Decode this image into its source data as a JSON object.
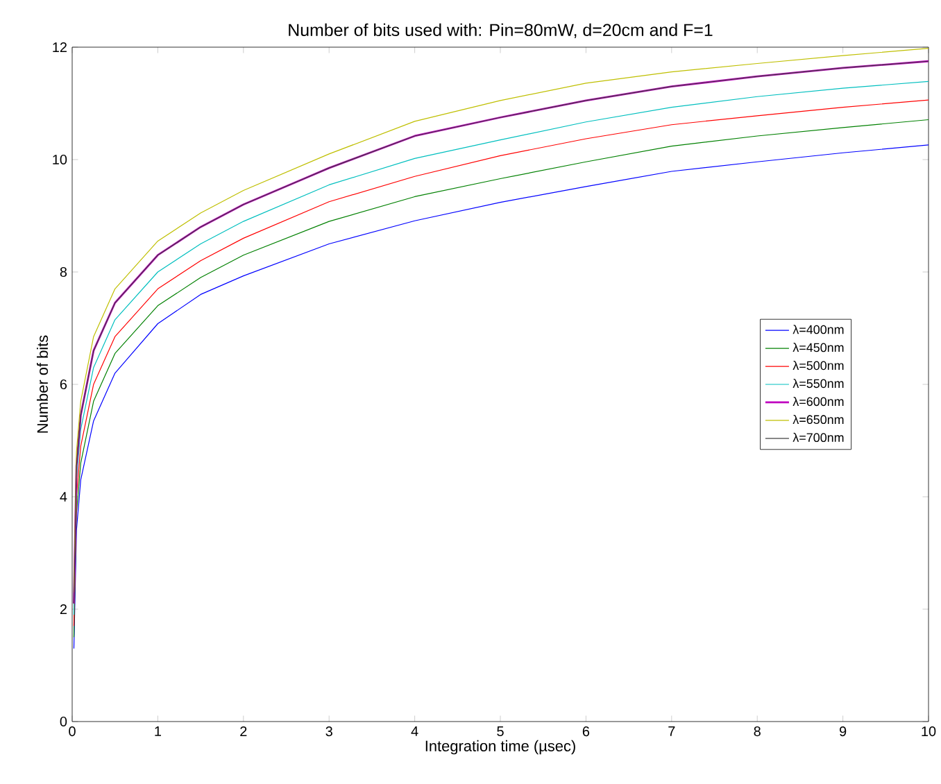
{
  "chart_data": {
    "type": "line",
    "title": "Number of bits used with: Pin=80mW, d=20cm and F=1",
    "xlabel": "Integration time (µsec)",
    "ylabel": "Number of bits",
    "x": [
      0.02,
      0.05,
      0.1,
      0.25,
      0.5,
      1,
      1.5,
      2,
      3,
      4,
      5,
      6,
      7,
      8,
      9,
      10
    ],
    "xlim": [
      0,
      10
    ],
    "ylim": [
      0,
      12
    ],
    "xticks": [
      0,
      1,
      2,
      3,
      4,
      5,
      6,
      7,
      8,
      9,
      10
    ],
    "yticks": [
      0,
      2,
      4,
      6,
      8,
      10,
      12
    ],
    "grid": false,
    "legend": "right",
    "marker": "none",
    "line_style": "solid",
    "series": [
      {
        "name": "λ=400nm",
        "color": "#0000ff",
        "values": [
          1.3,
          3.4,
          4.3,
          5.35,
          6.2,
          7.08,
          7.6,
          7.93,
          8.5,
          8.91,
          9.24,
          9.52,
          9.79,
          9.96,
          10.12,
          10.26
        ]
      },
      {
        "name": "λ=450nm",
        "color": "#008000",
        "values": [
          1.5,
          3.7,
          4.6,
          5.7,
          6.55,
          7.4,
          7.9,
          8.3,
          8.9,
          9.34,
          9.66,
          9.96,
          10.24,
          10.42,
          10.57,
          10.71
        ]
      },
      {
        "name": "λ=500nm",
        "color": "#ff0000",
        "values": [
          1.7,
          4.0,
          4.9,
          6.0,
          6.85,
          7.7,
          8.2,
          8.6,
          9.25,
          9.7,
          10.07,
          10.37,
          10.62,
          10.78,
          10.93,
          11.06
        ]
      },
      {
        "name": "λ=550nm",
        "color": "#00bfbf",
        "values": [
          1.9,
          4.3,
          5.2,
          6.3,
          7.15,
          8.0,
          8.5,
          8.9,
          9.55,
          10.02,
          10.35,
          10.67,
          10.93,
          11.12,
          11.27,
          11.39
        ]
      },
      {
        "name": "λ=600nm",
        "color": "#bf00bf",
        "values": [
          2.1,
          4.55,
          5.45,
          6.6,
          7.45,
          8.3,
          8.8,
          9.2,
          9.85,
          10.42,
          10.75,
          11.05,
          11.3,
          11.48,
          11.63,
          11.75
        ]
      },
      {
        "name": "λ=650nm",
        "color": "#bfbf00",
        "values": [
          2.3,
          4.8,
          5.7,
          6.85,
          7.7,
          8.55,
          9.05,
          9.45,
          10.1,
          10.68,
          11.05,
          11.36,
          11.56,
          11.71,
          11.85,
          11.98
        ]
      },
      {
        "name": "λ=700nm",
        "color": "#404040",
        "values": [
          2.1,
          4.55,
          5.45,
          6.6,
          7.45,
          8.3,
          8.8,
          9.2,
          9.85,
          10.42,
          10.75,
          11.05,
          11.3,
          11.48,
          11.63,
          11.75
        ]
      }
    ]
  }
}
